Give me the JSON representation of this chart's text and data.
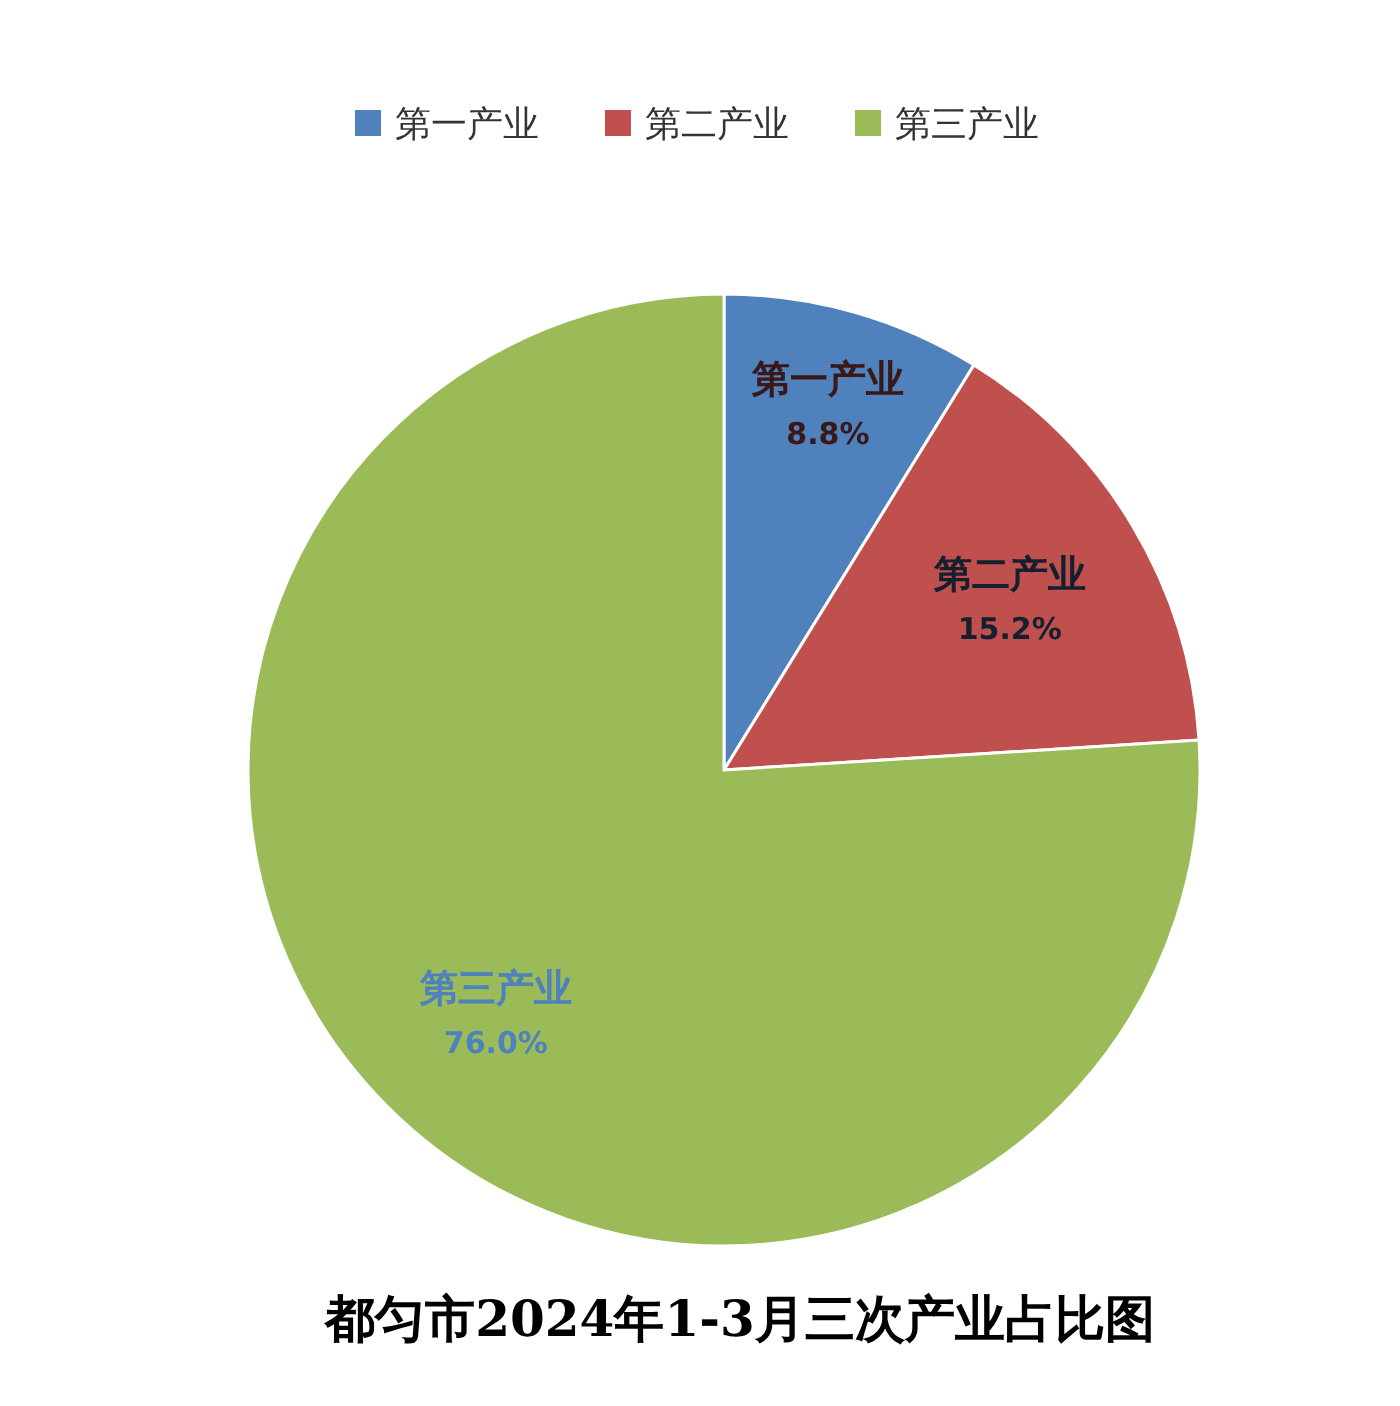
{
  "chart_data": {
    "type": "pie",
    "title": "都匀市2024年1-3月三次产业占比图",
    "categories": [
      "第一产业",
      "第二产业",
      "第三产业"
    ],
    "values": [
      8.8,
      15.2,
      76.0
    ],
    "value_labels": [
      "8.8%",
      "15.2%",
      "76.0%"
    ],
    "colors": [
      "#4f81bd",
      "#c0504d",
      "#9bbb59"
    ],
    "legend": "top"
  }
}
